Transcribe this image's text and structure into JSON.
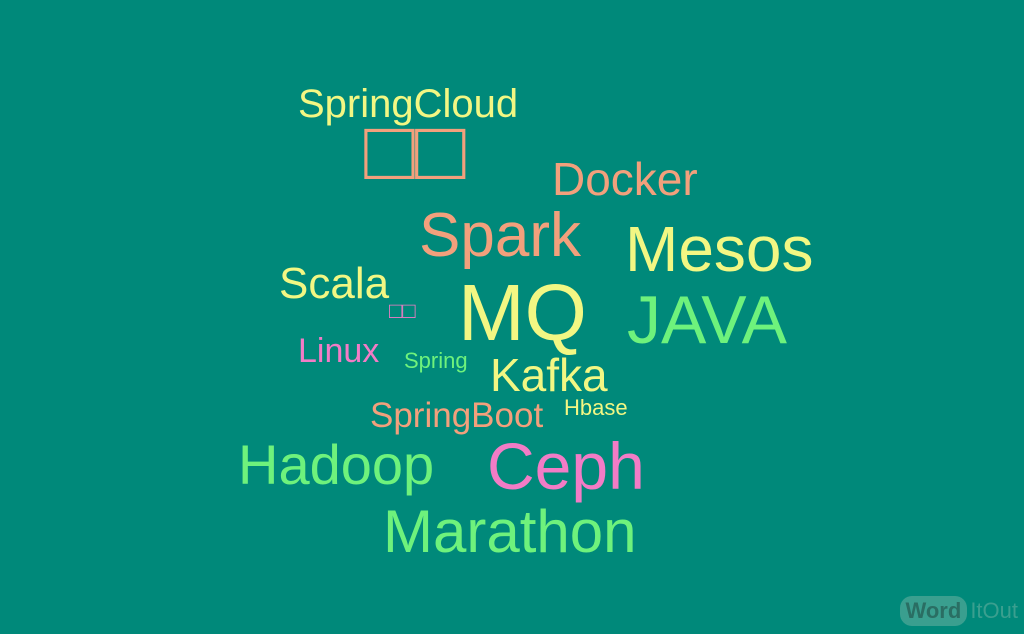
{
  "background_color": "#00897a",
  "palette": {
    "yellow": "#f2f783",
    "salmon": "#f2a07c",
    "green": "#6ef27c",
    "pink": "#f27cc6"
  },
  "words": {
    "springcloud": "SpringCloud",
    "cn1": "□□",
    "docker": "Docker",
    "spark": "Spark",
    "mesos": "Mesos",
    "scala": "Scala",
    "mq": "MQ",
    "java": "JAVA",
    "cn2": "□□",
    "linux": "Linux",
    "spring": "Spring",
    "kafka": "Kafka",
    "springboot": "SpringBoot",
    "hbase": "Hbase",
    "hadoop": "Hadoop",
    "ceph": "Ceph",
    "marathon": "Marathon"
  },
  "logo": {
    "word": "Word",
    "rest": "ItOut"
  }
}
